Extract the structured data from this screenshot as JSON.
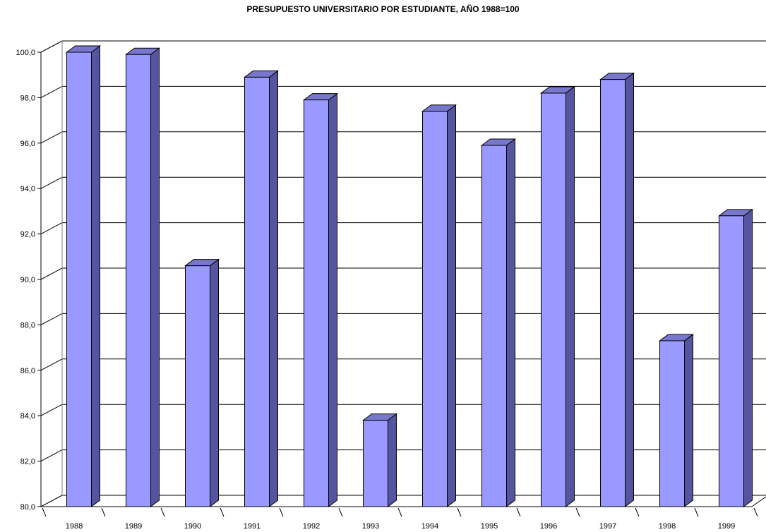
{
  "chart_data": {
    "type": "bar",
    "title": "PRESUPUESTO UNIVERSITARIO POR ESTUDIANTE, AÑO 1988=100",
    "xlabel": "",
    "ylabel": "",
    "categories": [
      "1988",
      "1989",
      "1990",
      "1991",
      "1992",
      "1993",
      "1994",
      "1995",
      "1996",
      "1997",
      "1998",
      "1999"
    ],
    "values": [
      100.0,
      99.9,
      90.6,
      98.9,
      97.9,
      83.8,
      97.4,
      95.9,
      98.2,
      98.8,
      87.3,
      92.8
    ],
    "ylim": [
      80,
      100
    ],
    "yticks": [
      "80,0",
      "82,0",
      "84,0",
      "86,0",
      "88,0",
      "90,0",
      "92,0",
      "94,0",
      "96,0",
      "98,0",
      "100,0"
    ],
    "grid": true,
    "three_d": true,
    "colors": {
      "bar_front": "#9999ff",
      "bar_side": "#55559f",
      "bar_top": "#7777cc",
      "outline": "#000000"
    }
  }
}
